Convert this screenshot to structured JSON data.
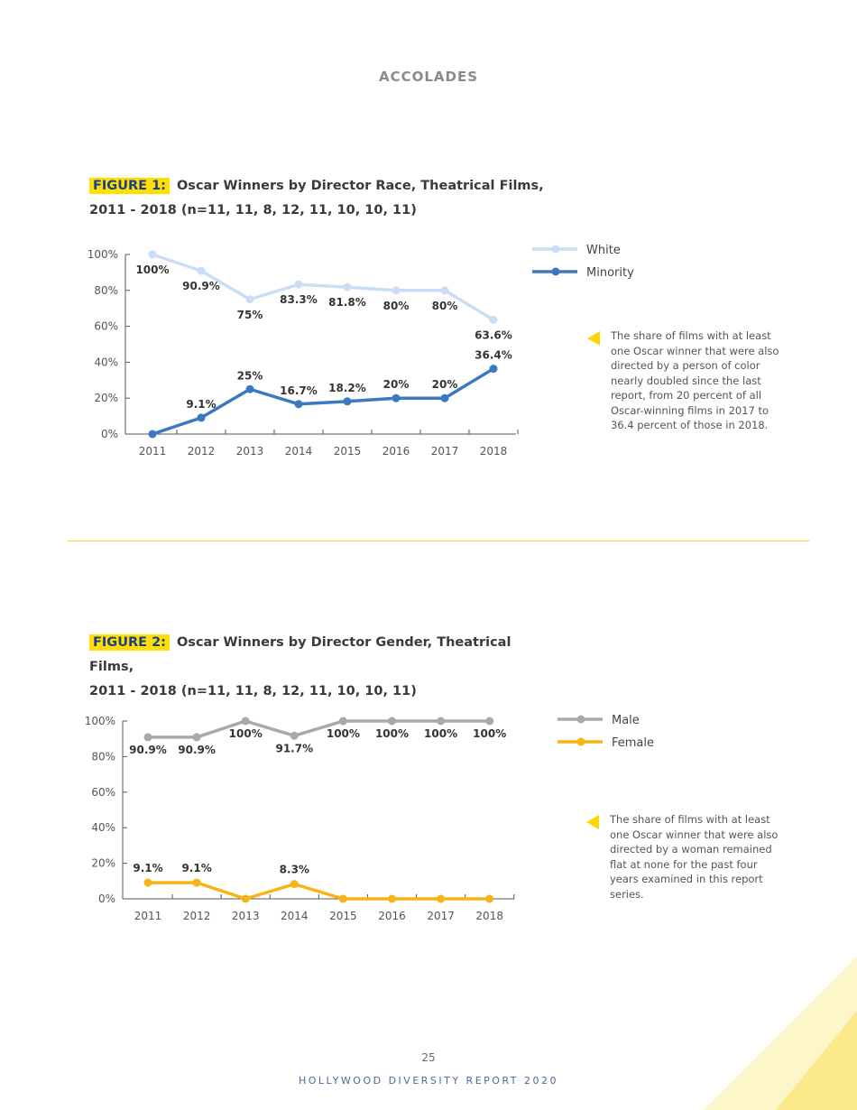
{
  "section_title": "ACCOLADES",
  "figures": [
    {
      "tag": "FIGURE 1:",
      "title_line1": "Oscar Winners by Director Race, Theatrical Films,",
      "title_line2": "2011 - 2018 (n=11, 11, 8, 12, 11, 10, 10, 11)",
      "note": "The share of films with at least one Oscar winner that were also directed by a person of color nearly doubled since the last report, from 20 percent of all Oscar-winning films in 2017 to 36.4 percent of those in 2018."
    },
    {
      "tag": "FIGURE 2:",
      "title_line1": "Oscar Winners by Director Gender, Theatrical Films,",
      "title_line2": "2011 - 2018 (n=11, 11, 8, 12, 11, 10, 10, 11)",
      "note": "The share of films with at least one Oscar winner that were also directed by a woman remained flat at none for the past four years examined in this report series."
    }
  ],
  "chart_data": [
    {
      "type": "line",
      "x": [
        "2011",
        "2012",
        "2013",
        "2014",
        "2015",
        "2016",
        "2017",
        "2018"
      ],
      "ylim": [
        0,
        100
      ],
      "yticks": [
        "0%",
        "20%",
        "40%",
        "60%",
        "80%",
        "100%"
      ],
      "grid": false,
      "legend": "right",
      "series": [
        {
          "name": "White",
          "color": "#c9def4",
          "values": [
            100,
            90.9,
            75,
            83.3,
            81.8,
            80,
            80,
            63.6
          ],
          "labels": [
            "100%",
            "90.9%",
            "75%",
            "83.3%",
            "81.8%",
            "80%",
            "80%",
            "63.6%"
          ]
        },
        {
          "name": "Minority",
          "color": "#3a78c0",
          "values": [
            0,
            9.1,
            25,
            16.7,
            18.2,
            20,
            20,
            36.4
          ],
          "labels": [
            "",
            "9.1%",
            "25%",
            "16.7%",
            "18.2%",
            "20%",
            "20%",
            "36.4%"
          ]
        }
      ]
    },
    {
      "type": "line",
      "x": [
        "2011",
        "2012",
        "2013",
        "2014",
        "2015",
        "2016",
        "2017",
        "2018"
      ],
      "ylim": [
        0,
        100
      ],
      "yticks": [
        "0%",
        "20%",
        "40%",
        "60%",
        "80%",
        "100%"
      ],
      "grid": false,
      "legend": "right",
      "series": [
        {
          "name": "Male",
          "color": "#a9a9a9",
          "values": [
            90.9,
            90.9,
            100,
            91.7,
            100,
            100,
            100,
            100
          ],
          "labels": [
            "90.9%",
            "90.9%",
            "100%",
            "91.7%",
            "100%",
            "100%",
            "100%",
            "100%"
          ]
        },
        {
          "name": "Female",
          "color": "#f8b316",
          "values": [
            9.1,
            9.1,
            0,
            8.3,
            0,
            0,
            0,
            0
          ],
          "labels": [
            "9.1%",
            "9.1%",
            "",
            "8.3%",
            "",
            "",
            "",
            ""
          ]
        }
      ]
    }
  ],
  "footer": {
    "page_number": "25",
    "report_title": "HOLLYWOOD DIVERSITY REPORT 2020"
  }
}
